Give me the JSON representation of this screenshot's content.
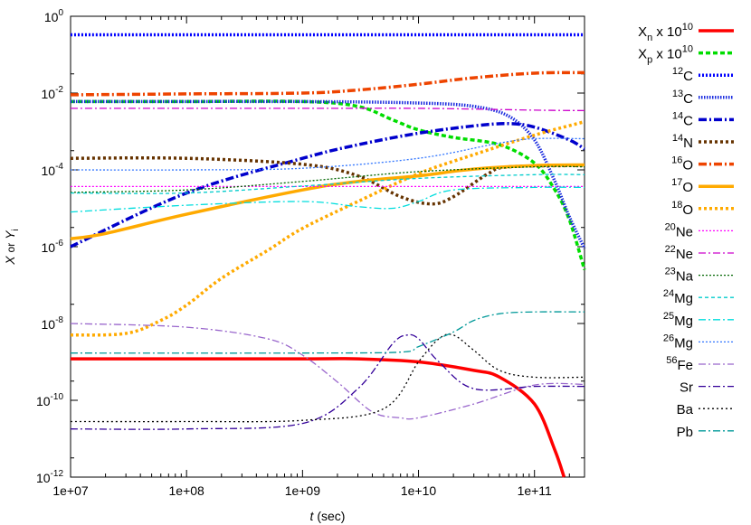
{
  "chart_data": {
    "type": "line",
    "xlabel_var": "t",
    "xlabel_unit": "(sec)",
    "ylabel_var1": "X",
    "ylabel_or": "or",
    "ylabel_var2": "Y",
    "ylabel_sub": "i",
    "x_scale": "log",
    "y_scale": "log",
    "xlim": [
      10000000.0,
      270000000000.0
    ],
    "ylim": [
      1e-12,
      1
    ],
    "x_ticks": [
      {
        "value": 10000000.0,
        "label": "1e+07"
      },
      {
        "value": 100000000.0,
        "label": "1e+08"
      },
      {
        "value": 1000000000.0,
        "label": "1e+09"
      },
      {
        "value": 10000000000.0,
        "label": "1e+10"
      },
      {
        "value": 100000000000.0,
        "label": "1e+11"
      }
    ],
    "y_ticks": [
      {
        "value": 1,
        "base": "10",
        "exp": "0"
      },
      {
        "value": 0.01,
        "base": "10",
        "exp": "-2"
      },
      {
        "value": 0.0001,
        "base": "10",
        "exp": "-4"
      },
      {
        "value": 1e-06,
        "base": "10",
        "exp": "-6"
      },
      {
        "value": 1e-08,
        "base": "10",
        "exp": "-8"
      },
      {
        "value": 1e-10,
        "base": "10",
        "exp": "-10"
      },
      {
        "value": 1e-12,
        "base": "10",
        "exp": "-12"
      }
    ],
    "legend_position": "right",
    "series": [
      {
        "id": "xn",
        "sym": "X",
        "sub": "n",
        "sup": "",
        "suffix_pre": " x 10",
        "suffix_sup": "10",
        "color": "#ff0000",
        "dash": "",
        "width": 3.5,
        "points": [
          [
            10000000.0,
            1.2e-09
          ],
          [
            100000000.0,
            1.2e-09
          ],
          [
            1000000000.0,
            1.2e-09
          ],
          [
            3000000000.0,
            1.2e-09
          ],
          [
            10000000000.0,
            1e-09
          ],
          [
            30000000000.0,
            6e-10
          ],
          [
            50000000000.0,
            4e-10
          ],
          [
            100000000000.0,
            8e-11
          ],
          [
            150000000000.0,
            5e-12
          ],
          [
            180000000000.0,
            1e-12
          ]
        ]
      },
      {
        "id": "xp",
        "sym": "X",
        "sub": "p",
        "sup": "",
        "suffix_pre": " x 10",
        "suffix_sup": "10",
        "color": "#00dd00",
        "dash": "5,3",
        "width": 3.5,
        "points": [
          [
            10000000.0,
            0.006
          ],
          [
            100000000.0,
            0.006
          ],
          [
            1000000000.0,
            0.006
          ],
          [
            3000000000.0,
            0.0045
          ],
          [
            6000000000.0,
            0.002
          ],
          [
            10000000000.0,
            0.0011
          ],
          [
            20000000000.0,
            0.0007
          ],
          [
            50000000000.0,
            0.00045
          ],
          [
            100000000000.0,
            0.00015
          ],
          [
            150000000000.0,
            3e-05
          ],
          [
            200000000000.0,
            5e-06
          ],
          [
            270000000000.0,
            2.5e-07
          ]
        ]
      },
      {
        "id": "c12",
        "sym": "C",
        "sub": "",
        "sup": "12",
        "suffix_pre": "",
        "suffix_sup": "",
        "color": "#0000ff",
        "dash": "2,2",
        "width": 3.5,
        "points": [
          [
            10000000.0,
            0.33
          ],
          [
            270000000000.0,
            0.33
          ]
        ]
      },
      {
        "id": "c13",
        "sym": "C",
        "sub": "",
        "sup": "13",
        "suffix_pre": "",
        "suffix_sup": "",
        "color": "#1a2bdf",
        "dash": "1.5,1.5",
        "width": 3.5,
        "points": [
          [
            10000000.0,
            0.006
          ],
          [
            1000000000.0,
            0.006
          ],
          [
            10000000000.0,
            0.0055
          ],
          [
            30000000000.0,
            0.0045
          ],
          [
            60000000000.0,
            0.0025
          ],
          [
            100000000000.0,
            0.0006
          ],
          [
            150000000000.0,
            5e-05
          ],
          [
            200000000000.0,
            6e-06
          ],
          [
            270000000000.0,
            9e-07
          ]
        ]
      },
      {
        "id": "c14",
        "sym": "C",
        "sub": "",
        "sup": "14",
        "suffix_pre": "",
        "suffix_sup": "",
        "color": "#0000cc",
        "dash": "9,3,2,3",
        "width": 3.5,
        "points": [
          [
            10000000.0,
            1e-06
          ],
          [
            100000000.0,
            2.5e-05
          ],
          [
            1000000000.0,
            0.0002
          ],
          [
            3000000000.0,
            0.00045
          ],
          [
            10000000000.0,
            0.0009
          ],
          [
            30000000000.0,
            0.0014
          ],
          [
            60000000000.0,
            0.0016
          ],
          [
            100000000000.0,
            0.0013
          ],
          [
            200000000000.0,
            0.0006
          ],
          [
            270000000000.0,
            0.00035
          ]
        ]
      },
      {
        "id": "n14",
        "sym": "N",
        "sub": "",
        "sup": "14",
        "suffix_pre": "",
        "suffix_sup": "",
        "color": "#663300",
        "dash": "3,3",
        "width": 3.5,
        "points": [
          [
            10000000.0,
            0.0002
          ],
          [
            100000000.0,
            0.0002
          ],
          [
            1000000000.0,
            0.00014
          ],
          [
            3000000000.0,
            7e-05
          ],
          [
            7000000000.0,
            2e-05
          ],
          [
            13000000000.0,
            1.3e-05
          ],
          [
            20000000000.0,
            2e-05
          ],
          [
            40000000000.0,
            8e-05
          ],
          [
            60000000000.0,
            0.00012
          ],
          [
            270000000000.0,
            0.00013
          ]
        ]
      },
      {
        "id": "o16",
        "sym": "O",
        "sub": "",
        "sup": "16",
        "suffix_pre": "",
        "suffix_sup": "",
        "color": "#ee4400",
        "dash": "9,3,2,3",
        "width": 3.5,
        "points": [
          [
            10000000.0,
            0.009
          ],
          [
            100000000.0,
            0.0095
          ],
          [
            1000000000.0,
            0.01
          ],
          [
            3000000000.0,
            0.012
          ],
          [
            10000000000.0,
            0.017
          ],
          [
            30000000000.0,
            0.025
          ],
          [
            100000000000.0,
            0.033
          ],
          [
            270000000000.0,
            0.034
          ]
        ]
      },
      {
        "id": "o17",
        "sym": "O",
        "sub": "",
        "sup": "17",
        "suffix_pre": "",
        "suffix_sup": "",
        "color": "#ffaa00",
        "dash": "",
        "width": 3.5,
        "points": [
          [
            10000000.0,
            1.6e-06
          ],
          [
            20000000.0,
            2.2e-06
          ],
          [
            100000000.0,
            7e-06
          ],
          [
            1000000000.0,
            3e-05
          ],
          [
            3000000000.0,
            5e-05
          ],
          [
            10000000000.0,
            7e-05
          ],
          [
            30000000000.0,
            0.000105
          ],
          [
            100000000000.0,
            0.00013
          ],
          [
            270000000000.0,
            0.000135
          ]
        ]
      },
      {
        "id": "o18",
        "sym": "O",
        "sub": "",
        "sup": "18",
        "suffix_pre": "",
        "suffix_sup": "",
        "color": "#ffaa00",
        "dash": "3,3",
        "width": 3.5,
        "points": [
          [
            10000000.0,
            5e-09
          ],
          [
            30000000.0,
            5.5e-09
          ],
          [
            60000000.0,
            1.2e-08
          ],
          [
            100000000.0,
            3e-08
          ],
          [
            200000000.0,
            1.5e-07
          ],
          [
            500000000.0,
            8e-07
          ],
          [
            1000000000.0,
            3e-06
          ],
          [
            3000000000.0,
            1.5e-05
          ],
          [
            10000000000.0,
            8e-05
          ],
          [
            30000000000.0,
            0.00025
          ],
          [
            100000000000.0,
            0.0008
          ],
          [
            270000000000.0,
            0.0018
          ]
        ]
      },
      {
        "id": "ne20",
        "sym": "Ne",
        "sub": "",
        "sup": "20",
        "suffix_pre": "",
        "suffix_sup": "",
        "color": "#ff00ff",
        "dash": "2,2",
        "width": 1.3,
        "points": [
          [
            10000000.0,
            3.7e-05
          ],
          [
            270000000000.0,
            3.7e-05
          ]
        ]
      },
      {
        "id": "ne22",
        "sym": "Ne",
        "sub": "",
        "sup": "22",
        "suffix_pre": "",
        "suffix_sup": "",
        "color": "#cc00cc",
        "dash": "8,3,2,3",
        "width": 1.3,
        "points": [
          [
            10000000.0,
            0.004
          ],
          [
            1000000000.0,
            0.004
          ],
          [
            10000000000.0,
            0.004
          ],
          [
            100000000000.0,
            0.0036
          ],
          [
            270000000000.0,
            0.0035
          ]
        ]
      },
      {
        "id": "na23",
        "sym": "Na",
        "sub": "",
        "sup": "23",
        "suffix_pre": "",
        "suffix_sup": "",
        "color": "#006600",
        "dash": "2,2",
        "width": 1.3,
        "points": [
          [
            10000000.0,
            2.6e-05
          ],
          [
            100000000.0,
            3e-05
          ],
          [
            1000000000.0,
            5e-05
          ],
          [
            10000000000.0,
            9e-05
          ],
          [
            100000000000.0,
            0.00012
          ],
          [
            270000000000.0,
            0.00012
          ]
        ]
      },
      {
        "id": "mg24",
        "sym": "Mg",
        "sub": "",
        "sup": "24",
        "suffix_pre": "",
        "suffix_sup": "",
        "color": "#00cccc",
        "dash": "4,3",
        "width": 1.3,
        "points": [
          [
            10000000.0,
            2.5e-05
          ],
          [
            100000000.0,
            2.5e-05
          ],
          [
            1000000000.0,
            3.8e-05
          ],
          [
            10000000000.0,
            6e-05
          ],
          [
            100000000000.0,
            7.5e-05
          ],
          [
            270000000000.0,
            7.5e-05
          ]
        ]
      },
      {
        "id": "mg25",
        "sym": "Mg",
        "sub": "",
        "sup": "25",
        "suffix_pre": "",
        "suffix_sup": "",
        "color": "#00dddd",
        "dash": "8,3,2,3",
        "width": 1.3,
        "points": [
          [
            10000000.0,
            8e-06
          ],
          [
            100000000.0,
            1.2e-05
          ],
          [
            1000000000.0,
            1.5e-05
          ],
          [
            3000000000.0,
            1.1e-05
          ],
          [
            6000000000.0,
            1e-05
          ],
          [
            10000000000.0,
            1.5e-05
          ],
          [
            20000000000.0,
            3e-05
          ],
          [
            100000000000.0,
            3.5e-05
          ],
          [
            270000000000.0,
            3.5e-05
          ]
        ]
      },
      {
        "id": "mg26",
        "sym": "Mg",
        "sub": "",
        "sup": "26",
        "suffix_pre": "",
        "suffix_sup": "",
        "color": "#3377ff",
        "dash": "2,2",
        "width": 1.3,
        "points": [
          [
            10000000.0,
            0.0001
          ],
          [
            100000000.0,
            0.0001
          ],
          [
            1000000000.0,
            0.00011
          ],
          [
            10000000000.0,
            0.0002
          ],
          [
            50000000000.0,
            0.0005
          ],
          [
            100000000000.0,
            0.00065
          ],
          [
            270000000000.0,
            0.00065
          ]
        ]
      },
      {
        "id": "fe56",
        "sym": "Fe",
        "sub": "",
        "sup": "56",
        "suffix_pre": "",
        "suffix_sup": "",
        "color": "#9966cc",
        "dash": "8,3,2,3",
        "width": 1.3,
        "points": [
          [
            10000000.0,
            1e-08
          ],
          [
            100000000.0,
            8e-09
          ],
          [
            500000000.0,
            4e-09
          ],
          [
            1000000000.0,
            1.5e-09
          ],
          [
            2000000000.0,
            3e-10
          ],
          [
            4000000000.0,
            5e-11
          ],
          [
            7000000000.0,
            3.5e-11
          ],
          [
            10000000000.0,
            3.5e-11
          ],
          [
            30000000000.0,
            8e-11
          ],
          [
            100000000000.0,
            2.5e-10
          ],
          [
            270000000000.0,
            2.6e-10
          ]
        ]
      },
      {
        "id": "sr",
        "sym": "Sr",
        "sub": "",
        "sup": "",
        "suffix_pre": "",
        "suffix_sup": "",
        "color": "#330099",
        "dash": "8,3,2,3",
        "width": 1.3,
        "points": [
          [
            10000000.0,
            1.8e-11
          ],
          [
            100000000.0,
            1.8e-11
          ],
          [
            1000000000.0,
            2.5e-11
          ],
          [
            3000000000.0,
            2e-10
          ],
          [
            6000000000.0,
            3e-09
          ],
          [
            8000000000.0,
            5e-09
          ],
          [
            10000000000.0,
            4e-09
          ],
          [
            15000000000.0,
            1e-09
          ],
          [
            30000000000.0,
            2e-10
          ],
          [
            100000000000.0,
            2.3e-10
          ],
          [
            270000000000.0,
            2.3e-10
          ]
        ]
      },
      {
        "id": "ba",
        "sym": "Ba",
        "sub": "",
        "sup": "",
        "suffix_pre": "",
        "suffix_sup": "",
        "color": "#000000",
        "dash": "2,3",
        "width": 1.3,
        "points": [
          [
            10000000.0,
            2.8e-11
          ],
          [
            100000000.0,
            2.8e-11
          ],
          [
            1000000000.0,
            3e-11
          ],
          [
            5000000000.0,
            6e-11
          ],
          [
            10000000000.0,
            1e-09
          ],
          [
            15000000000.0,
            4e-09
          ],
          [
            20000000000.0,
            5e-09
          ],
          [
            30000000000.0,
            2e-09
          ],
          [
            50000000000.0,
            6e-10
          ],
          [
            100000000000.0,
            4e-10
          ],
          [
            270000000000.0,
            4e-10
          ]
        ]
      },
      {
        "id": "pb",
        "sym": "Pb",
        "sub": "",
        "sup": "",
        "suffix_pre": "",
        "suffix_sup": "",
        "color": "#009999",
        "dash": "8,3,2,3",
        "width": 1.3,
        "points": [
          [
            10000000.0,
            1.7e-09
          ],
          [
            1000000000.0,
            1.7e-09
          ],
          [
            7000000000.0,
            1.8e-09
          ],
          [
            10000000000.0,
            2.5e-09
          ],
          [
            20000000000.0,
            6e-09
          ],
          [
            30000000000.0,
            1.2e-08
          ],
          [
            50000000000.0,
            1.8e-08
          ],
          [
            100000000000.0,
            2e-08
          ],
          [
            270000000000.0,
            2e-08
          ]
        ]
      }
    ]
  }
}
